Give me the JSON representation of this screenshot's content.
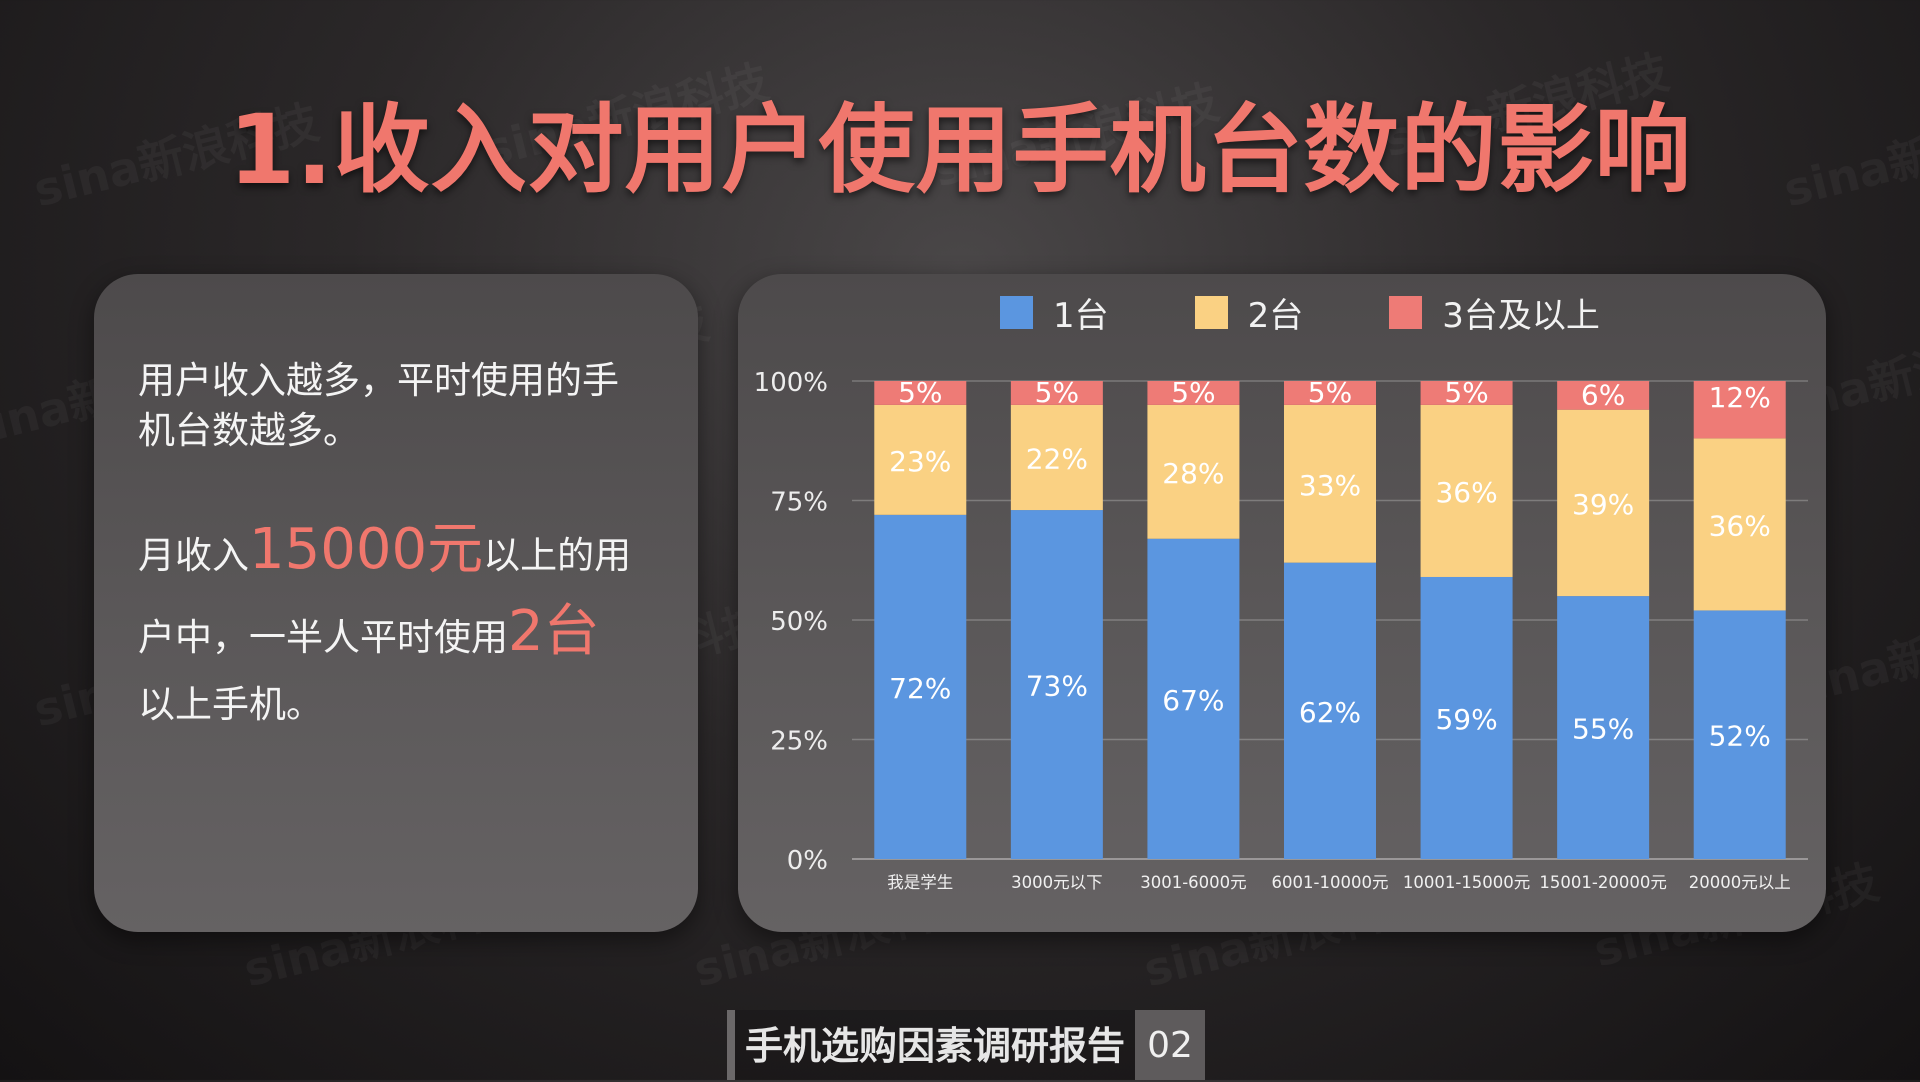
{
  "title": "1.收入对用户使用手机台数的影响",
  "watermark": "sina新浪科技",
  "left_panel": {
    "para1_lines": [
      "用户收入越多，平时使用的手",
      "机台数越多。"
    ],
    "para2": {
      "line1_pre": "月收入",
      "line1_hl": "15000元",
      "line1_post": "以上的用",
      "line2_pre": "户中，一半人平时使用",
      "line2_hl": "2台",
      "line3": "以上手机。"
    }
  },
  "footer": {
    "title": "手机选购因素调研报告",
    "page": "02"
  },
  "chart_data": {
    "type": "bar",
    "stacked": true,
    "percent_stacked": true,
    "categories": [
      "我是学生",
      "3000元以下",
      "3001-6000元",
      "6001-10000元",
      "10001-15000元",
      "15001-20000元",
      "20000元以上"
    ],
    "series": [
      {
        "name": "1台",
        "color": "#5b96e0",
        "values": [
          72,
          73,
          67,
          62,
          59,
          55,
          52
        ],
        "labels": [
          "72%",
          "73%",
          "67%",
          "62%",
          "59%",
          "55%",
          "52%"
        ]
      },
      {
        "name": "2台",
        "color": "#fad183",
        "values": [
          23,
          22,
          28,
          33,
          36,
          39,
          36
        ],
        "labels": [
          "23%",
          "22%",
          "28%",
          "33%",
          "36%",
          "39%",
          "36%"
        ]
      },
      {
        "name": "3台及以上",
        "color": "#ee7b76",
        "values": [
          5,
          5,
          5,
          5,
          5,
          6,
          12
        ],
        "labels": [
          "5%",
          "5%",
          "5%",
          "5%",
          "5%",
          "6%",
          "12%"
        ]
      }
    ],
    "yticks": [
      "0%",
      "25%",
      "50%",
      "75%",
      "100%"
    ],
    "ylim": [
      0,
      100
    ],
    "grid": true,
    "legend_position": "top"
  }
}
